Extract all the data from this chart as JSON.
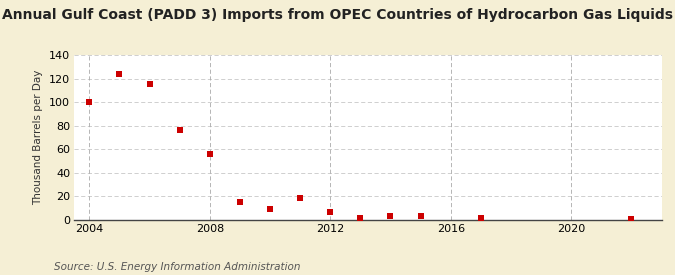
{
  "title": "Annual Gulf Coast (PADD 3) Imports from OPEC Countries of Hydrocarbon Gas Liquids",
  "ylabel": "Thousand Barrels per Day",
  "source": "Source: U.S. Energy Information Administration",
  "outer_bg": "#f5efd5",
  "plot_bg": "#ffffff",
  "years": [
    2004,
    2005,
    2006,
    2007,
    2008,
    2009,
    2010,
    2011,
    2012,
    2013,
    2014,
    2015,
    2017,
    2022
  ],
  "values": [
    100,
    124,
    115,
    76,
    56,
    15,
    9,
    19,
    7,
    2,
    3,
    3,
    2,
    1
  ],
  "marker_color": "#cc0000",
  "marker_size": 5,
  "ylim": [
    0,
    140
  ],
  "yticks": [
    0,
    20,
    40,
    60,
    80,
    100,
    120,
    140
  ],
  "xlim": [
    2003.5,
    2023
  ],
  "xticks": [
    2004,
    2008,
    2012,
    2016,
    2020
  ],
  "hgrid_color": "#c8c8c8",
  "vgrid_color": "#aaaaaa",
  "title_fontsize": 10,
  "ylabel_fontsize": 7.5,
  "tick_fontsize": 8,
  "source_fontsize": 7.5
}
